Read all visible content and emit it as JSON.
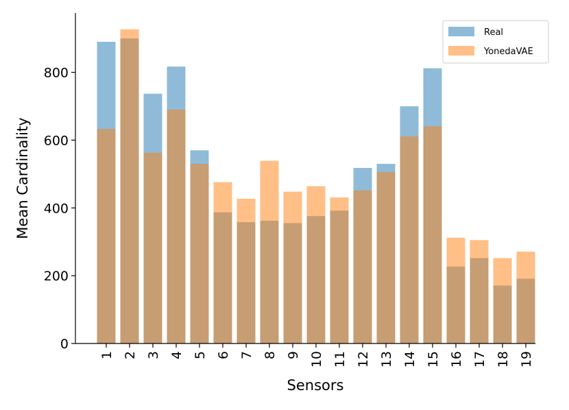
{
  "chart_data": {
    "type": "bar",
    "xlabel": "Sensors",
    "ylabel": "Mean Cardinality",
    "categories": [
      "1",
      "2",
      "3",
      "4",
      "5",
      "6",
      "7",
      "8",
      "9",
      "10",
      "11",
      "12",
      "13",
      "14",
      "15",
      "16",
      "17",
      "18",
      "19"
    ],
    "ylim": [
      0,
      975
    ],
    "yticks": [
      0,
      200,
      400,
      600,
      800
    ],
    "grid": false,
    "legend_position": "top-right",
    "series": [
      {
        "name": "Real",
        "color": "#1f77b4",
        "values": [
          890,
          900,
          737,
          817,
          570,
          387,
          358,
          362,
          355,
          376,
          392,
          518,
          530,
          700,
          812,
          227,
          252,
          171,
          191
        ]
      },
      {
        "name": "YonedaVAE",
        "color": "#ff7f0e",
        "values": [
          633,
          927,
          563,
          690,
          530,
          476,
          427,
          539,
          448,
          464,
          431,
          452,
          506,
          611,
          641,
          312,
          305,
          252,
          271
        ]
      }
    ]
  }
}
